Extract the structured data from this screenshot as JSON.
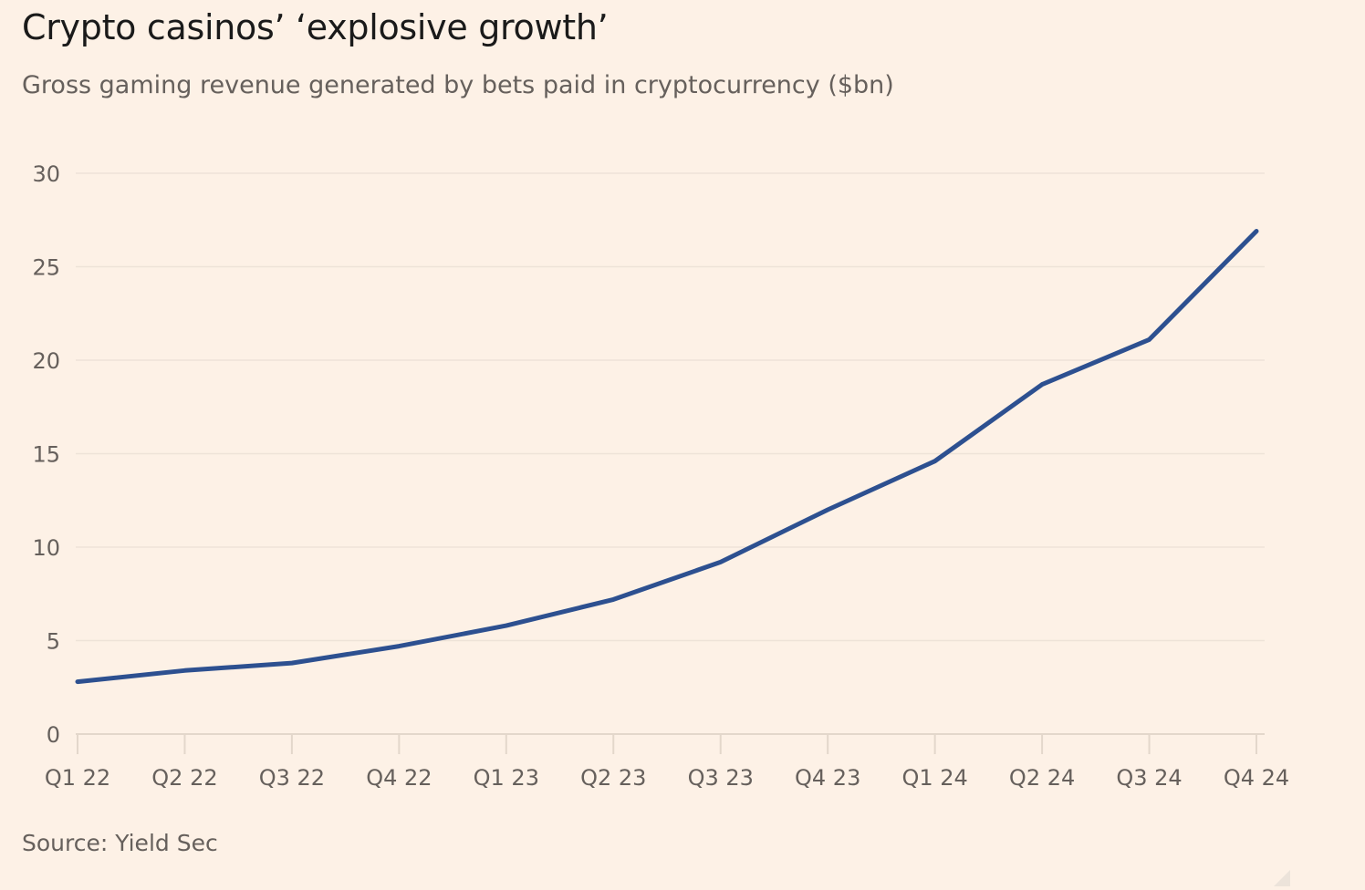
{
  "chart_data": {
    "type": "line",
    "title": "Crypto casinos’ ‘explosive growth’",
    "subtitle": "Gross gaming revenue generated by bets paid in cryptocurrency ($bn)",
    "source": "Source: Yield Sec",
    "categories": [
      "Q1 22",
      "Q2 22",
      "Q3 22",
      "Q4 22",
      "Q1 23",
      "Q2 23",
      "Q3 23",
      "Q4 23",
      "Q1 24",
      "Q2 24",
      "Q3 24",
      "Q4 24"
    ],
    "series": [
      {
        "values": [
          2.8,
          3.4,
          3.8,
          4.7,
          5.8,
          7.2,
          9.2,
          12.0,
          14.6,
          18.7,
          21.1,
          26.9
        ],
        "color": "#2d5090"
      }
    ],
    "ylim": [
      0,
      30
    ],
    "yticks": [
      0,
      5,
      10,
      15,
      20,
      25,
      30
    ],
    "xlabel": "",
    "ylabel": "",
    "grid": true,
    "legend": "none"
  }
}
